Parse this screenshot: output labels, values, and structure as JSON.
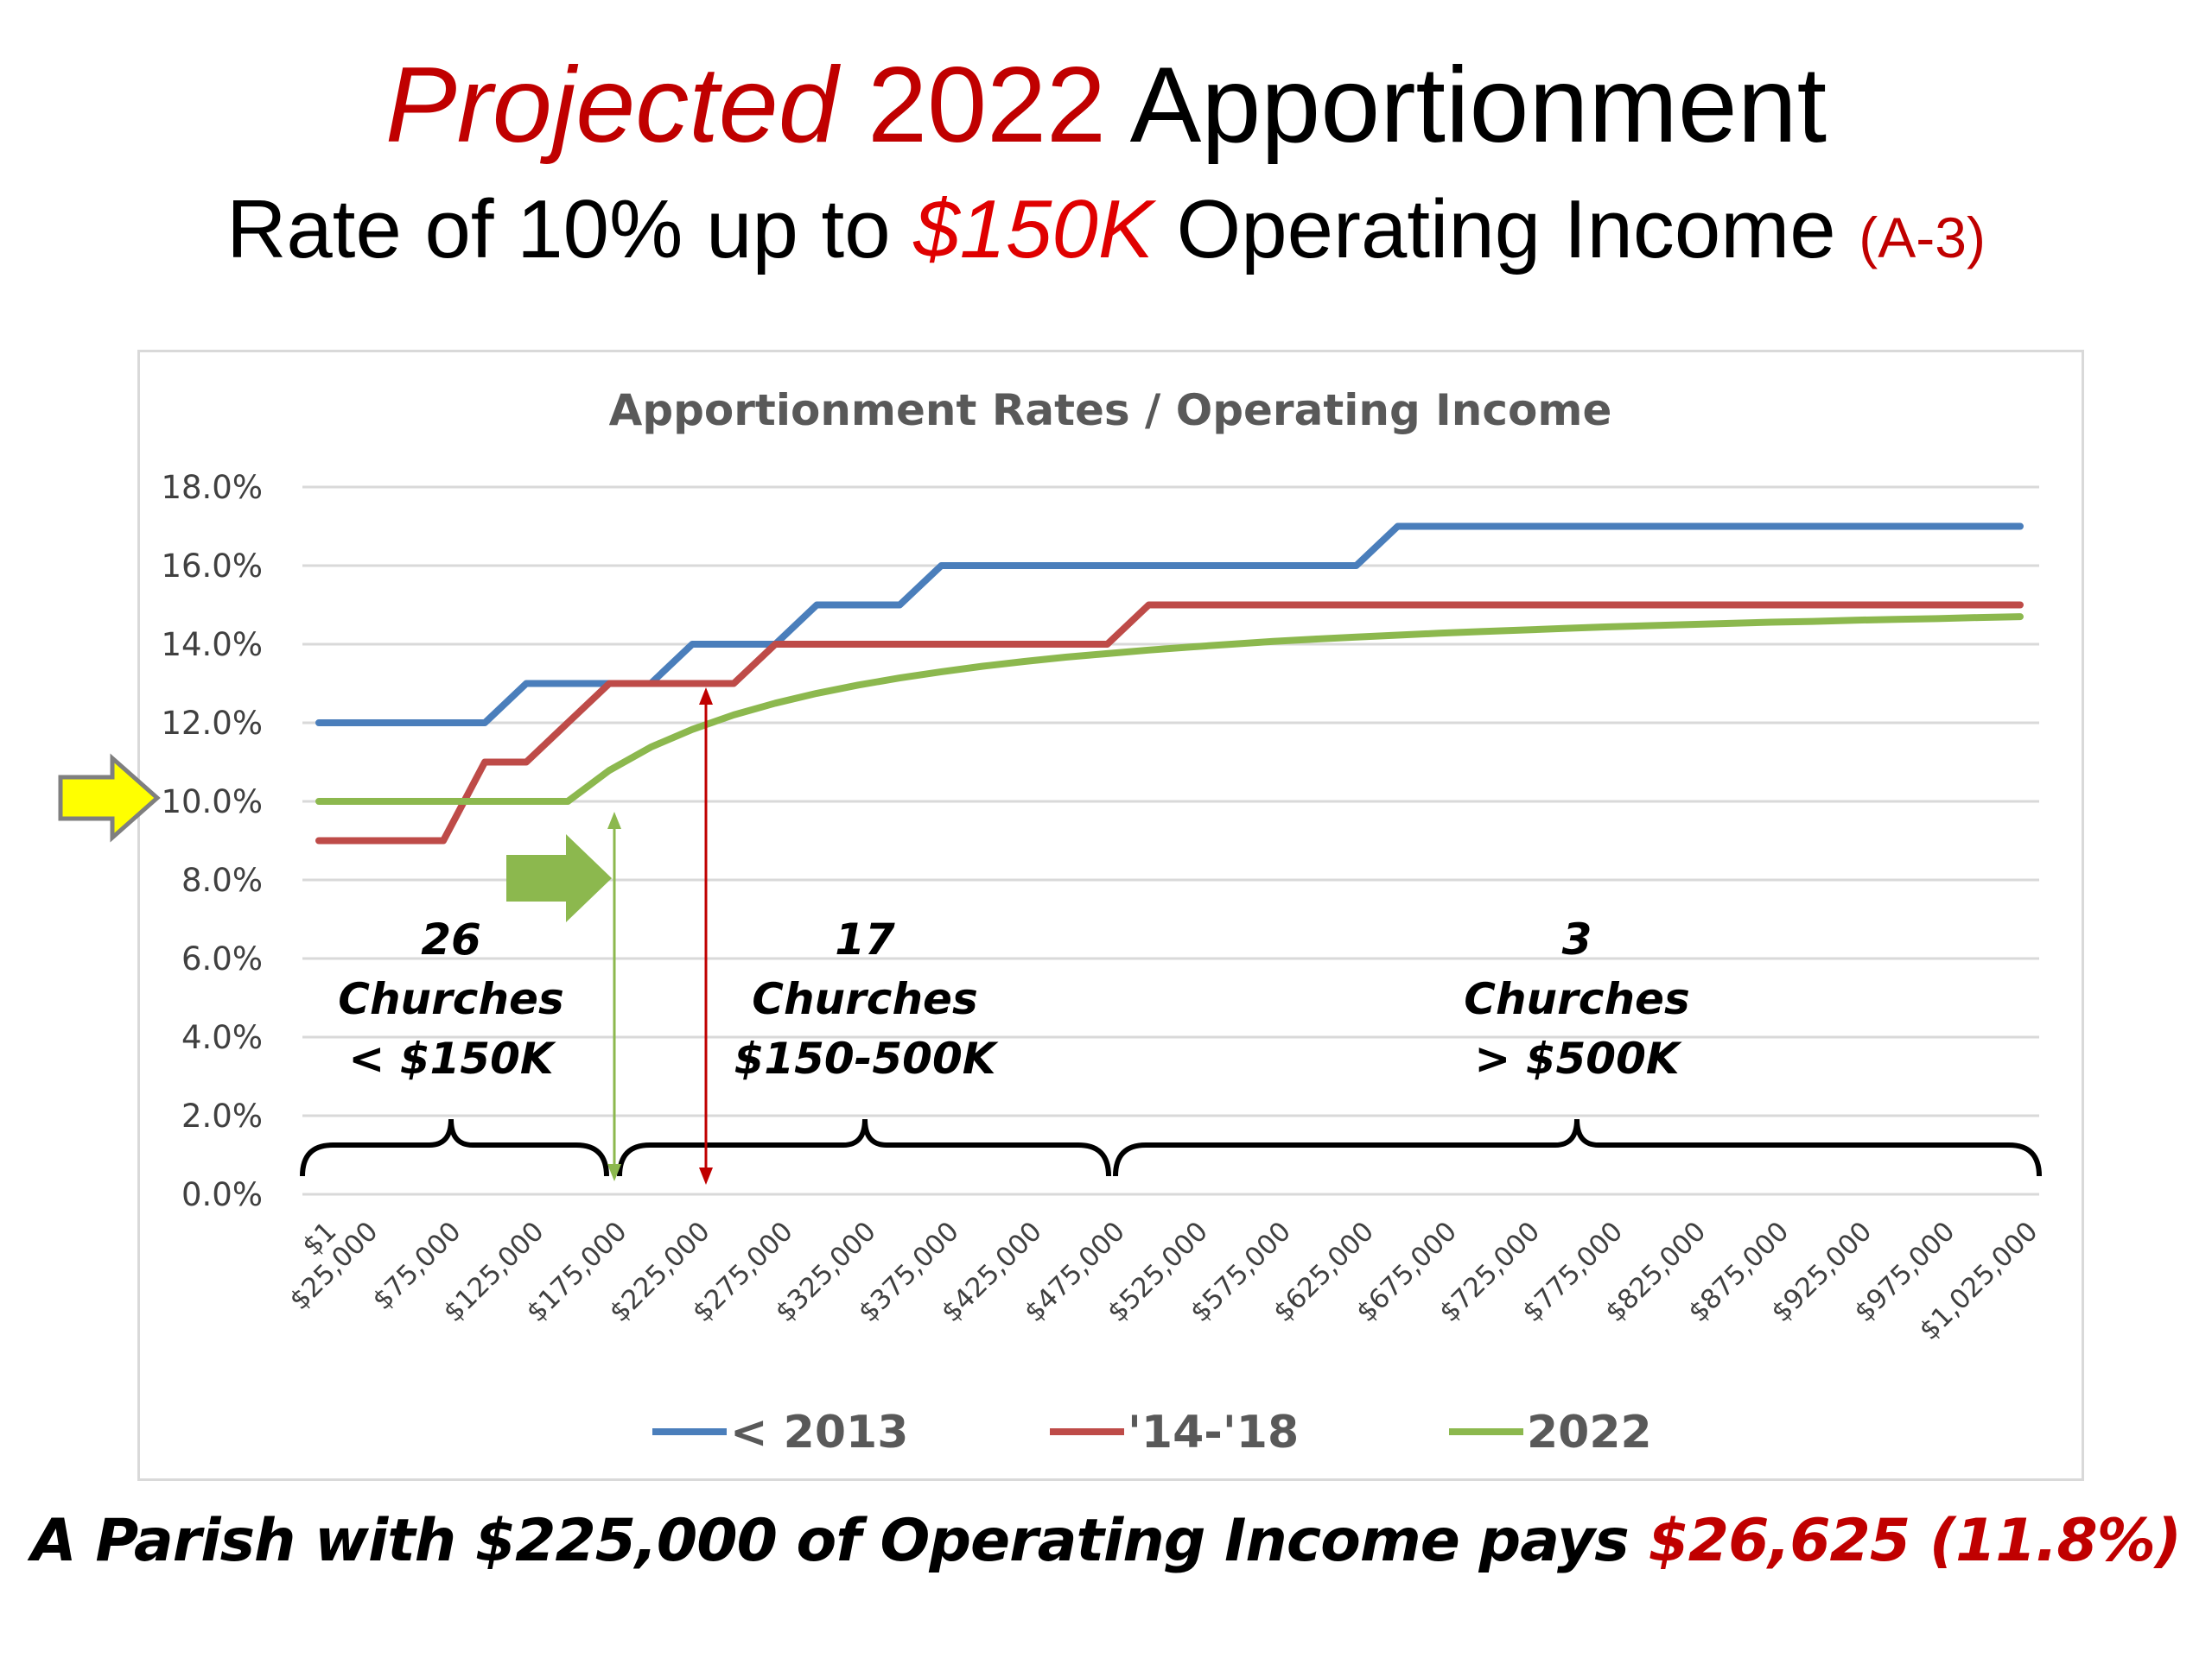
{
  "header": {
    "title_word1": "Projected",
    "title_word2": "2022",
    "title_word3": "Apportionment",
    "subtitle_part1": "Rate of 10% up to",
    "subtitle_highlight": "$150K",
    "subtitle_part2": "Operating Income",
    "subtitle_tag": "(A-3)"
  },
  "caption": {
    "text": "A Parish with $225,000 of Operating Income pays",
    "highlight": "$26,625 (11.8%)"
  },
  "colors": {
    "blue": "#4a7ebb",
    "red": "#be4b48",
    "green": "#8cb84e",
    "title_red": "#c00000",
    "yellow": "#ffff00"
  },
  "chart_data": {
    "type": "line",
    "title": "Apportionment Rates / Operating Income",
    "xlabel": "",
    "ylabel": "",
    "ylim": [
      0,
      18
    ],
    "xlim": [
      0,
      1025000
    ],
    "grid": true,
    "legend_position": "bottom",
    "y_tick_labels": [
      "0.0%",
      "2.0%",
      "4.0%",
      "6.0%",
      "8.0%",
      "10.0%",
      "12.0%",
      "14.0%",
      "16.0%",
      "18.0%"
    ],
    "x_tick_values": [
      0,
      25000,
      75000,
      125000,
      175000,
      225000,
      275000,
      325000,
      375000,
      425000,
      475000,
      525000,
      575000,
      625000,
      675000,
      725000,
      775000,
      825000,
      875000,
      925000,
      975000,
      1025000
    ],
    "x_tick_labels": [
      "$1",
      "$25,000",
      "$75,000",
      "$125,000",
      "$175,000",
      "$225,000",
      "$275,000",
      "$325,000",
      "$375,000",
      "$425,000",
      "$475,000",
      "$525,000",
      "$575,000",
      "$625,000",
      "$675,000",
      "$725,000",
      "$775,000",
      "$825,000",
      "$875,000",
      "$925,000",
      "$975,000",
      "$1,025,000"
    ],
    "x": [
      0,
      25000,
      50000,
      75000,
      100000,
      125000,
      150000,
      175000,
      200000,
      225000,
      250000,
      275000,
      300000,
      325000,
      350000,
      375000,
      400000,
      425000,
      450000,
      475000,
      500000,
      525000,
      550000,
      575000,
      600000,
      625000,
      650000,
      675000,
      700000,
      725000,
      750000,
      775000,
      800000,
      825000,
      850000,
      875000,
      900000,
      925000,
      950000,
      975000,
      1000000,
      1025000
    ],
    "series": [
      {
        "name": "< 2013",
        "color": "#4a7ebb",
        "values": [
          12,
          12,
          12,
          12,
          12,
          13,
          13,
          13,
          13,
          14,
          14,
          14,
          15,
          15,
          15,
          16,
          16,
          16,
          16,
          16,
          16,
          16,
          16,
          16,
          16,
          16,
          17,
          17,
          17,
          17,
          17,
          17,
          17,
          17,
          17,
          17,
          17,
          17,
          17,
          17,
          17,
          17
        ]
      },
      {
        "name": "'14-'18",
        "color": "#be4b48",
        "values": [
          9,
          9,
          9,
          9,
          11,
          11,
          12,
          13,
          13,
          13,
          13,
          14,
          14,
          14,
          14,
          14,
          14,
          14,
          14,
          14,
          15,
          15,
          15,
          15,
          15,
          15,
          15,
          15,
          15,
          15,
          15,
          15,
          15,
          15,
          15,
          15,
          15,
          15,
          15,
          15,
          15,
          15
        ]
      },
      {
        "name": "2022",
        "color": "#8cb84e",
        "values": [
          10,
          10,
          10,
          10,
          10,
          10,
          10,
          10.79,
          11.38,
          11.83,
          12.2,
          12.5,
          12.75,
          12.96,
          13.14,
          13.3,
          13.44,
          13.56,
          13.67,
          13.76,
          13.85,
          13.93,
          14.0,
          14.07,
          14.13,
          14.18,
          14.23,
          14.28,
          14.32,
          14.36,
          14.4,
          14.44,
          14.47,
          14.5,
          14.53,
          14.56,
          14.58,
          14.61,
          14.63,
          14.65,
          14.68,
          14.7
        ]
      }
    ],
    "annotations": [
      {
        "count": "26",
        "label": "Churches",
        "range": "< $150K",
        "x_from": 0,
        "x_to": 150000
      },
      {
        "count": "17",
        "label": "Churches",
        "range": "$150-500K",
        "x_from": 150000,
        "x_to": 500000
      },
      {
        "count": "3",
        "label": "Churches",
        "range": "> $500K",
        "x_from": 500000,
        "x_to": 1025000
      }
    ]
  }
}
